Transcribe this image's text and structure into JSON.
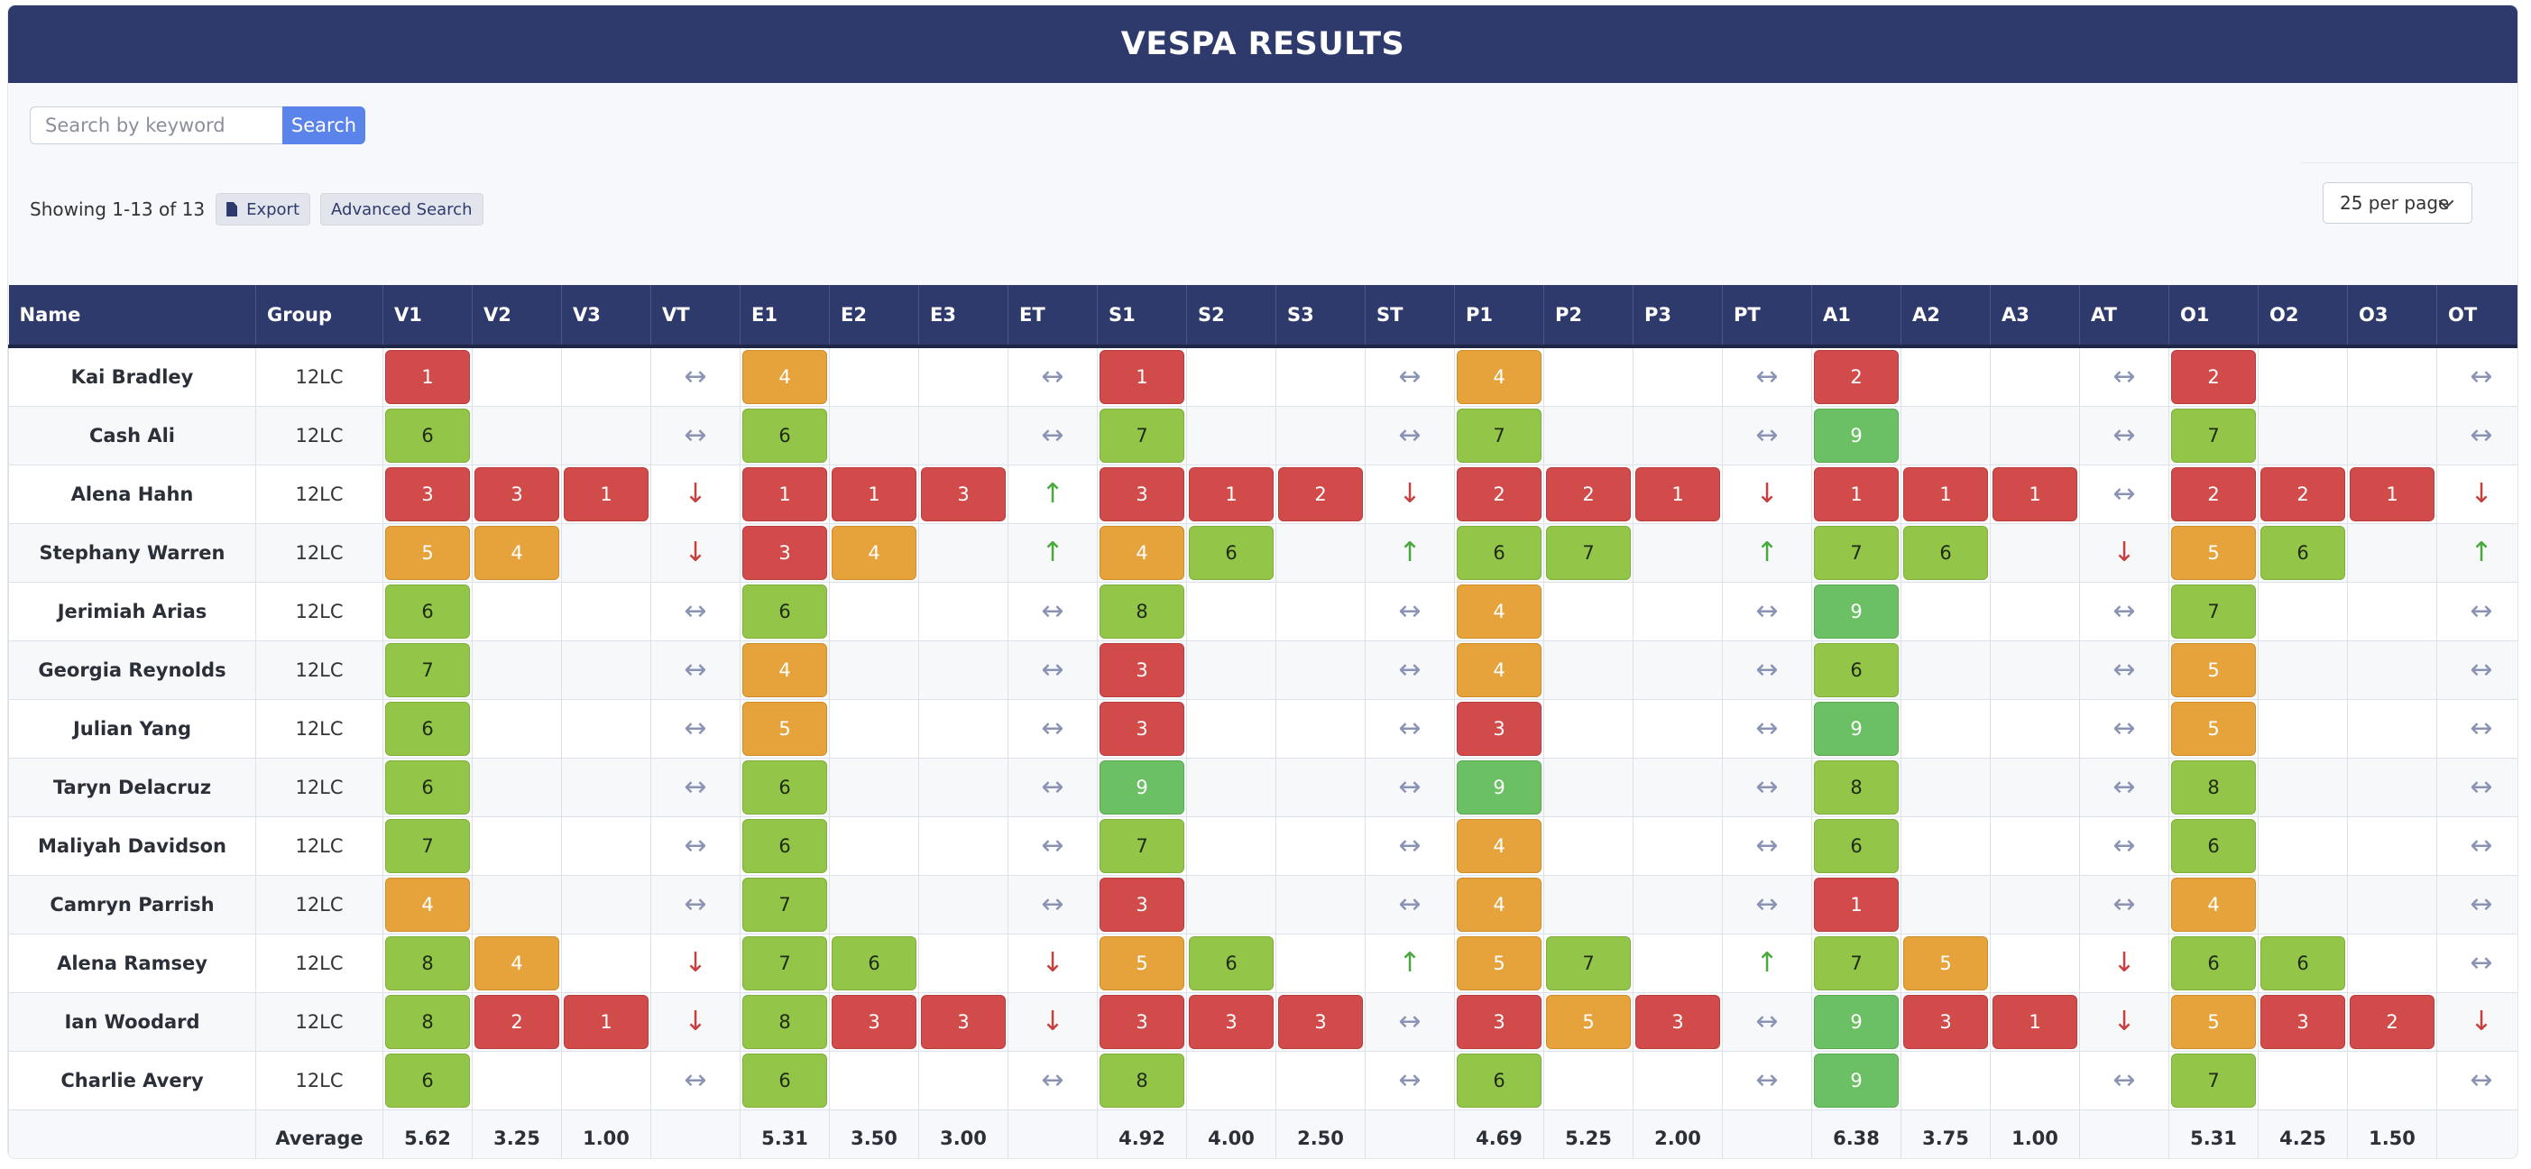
{
  "title": "VESPA RESULTS",
  "search": {
    "placeholder": "Search by keyword",
    "button": "Search"
  },
  "info": {
    "showing": "Showing 1-13 of 13",
    "export": "Export",
    "advanced": "Advanced Search"
  },
  "per_page": "25 per page",
  "colors": {
    "header": "#2e3a6c",
    "red": "#d24b4b",
    "orange": "#e6a33c",
    "lime": "#92c548",
    "green": "#6cc064"
  },
  "table": {
    "headers": [
      "Name",
      "Group",
      "V1",
      "V2",
      "V3",
      "VT",
      "E1",
      "E2",
      "E3",
      "ET",
      "S1",
      "S2",
      "S3",
      "ST",
      "P1",
      "P2",
      "P3",
      "PT",
      "A1",
      "A2",
      "A3",
      "AT",
      "O1",
      "O2",
      "O3",
      "OT"
    ],
    "rows": [
      {
        "name": "Kai Bradley",
        "group": "12LC",
        "cells": [
          [
            1
          ],
          "flat",
          [
            4
          ],
          "flat",
          [
            1
          ],
          "flat",
          [
            4
          ],
          "flat",
          [
            2
          ],
          "flat",
          [
            2
          ],
          "flat"
        ]
      },
      {
        "name": "Cash Ali",
        "group": "12LC",
        "cells": [
          [
            6
          ],
          "flat",
          [
            6
          ],
          "flat",
          [
            7
          ],
          "flat",
          [
            7
          ],
          "flat",
          [
            9
          ],
          "flat",
          [
            7
          ],
          "flat"
        ]
      },
      {
        "name": "Alena Hahn",
        "group": "12LC",
        "cells": [
          [
            3,
            3,
            1
          ],
          "down",
          [
            1,
            1,
            3
          ],
          "up",
          [
            3,
            1,
            2
          ],
          "down",
          [
            2,
            2,
            1
          ],
          "down",
          [
            1,
            1,
            1
          ],
          "flat",
          [
            2,
            2,
            1
          ],
          "down"
        ]
      },
      {
        "name": "Stephany Warren",
        "group": "12LC",
        "cells": [
          [
            5,
            4
          ],
          "down",
          [
            3,
            4
          ],
          "up",
          [
            4,
            6
          ],
          "up",
          [
            6,
            7
          ],
          "up",
          [
            7,
            6
          ],
          "down",
          [
            5,
            6
          ],
          "up"
        ]
      },
      {
        "name": "Jerimiah Arias",
        "group": "12LC",
        "cells": [
          [
            6
          ],
          "flat",
          [
            6
          ],
          "flat",
          [
            8
          ],
          "flat",
          [
            4
          ],
          "flat",
          [
            9
          ],
          "flat",
          [
            7
          ],
          "flat"
        ]
      },
      {
        "name": "Georgia Reynolds",
        "group": "12LC",
        "cells": [
          [
            7
          ],
          "flat",
          [
            4
          ],
          "flat",
          [
            3
          ],
          "flat",
          [
            4
          ],
          "flat",
          [
            6
          ],
          "flat",
          [
            5
          ],
          "flat"
        ]
      },
      {
        "name": "Julian Yang",
        "group": "12LC",
        "cells": [
          [
            6
          ],
          "flat",
          [
            5
          ],
          "flat",
          [
            3
          ],
          "flat",
          [
            3
          ],
          "flat",
          [
            9
          ],
          "flat",
          [
            5
          ],
          "flat"
        ]
      },
      {
        "name": "Taryn Delacruz",
        "group": "12LC",
        "cells": [
          [
            6
          ],
          "flat",
          [
            6
          ],
          "flat",
          [
            9
          ],
          "flat",
          [
            9
          ],
          "flat",
          [
            8
          ],
          "flat",
          [
            8
          ],
          "flat"
        ]
      },
      {
        "name": "Maliyah Davidson",
        "group": "12LC",
        "cells": [
          [
            7
          ],
          "flat",
          [
            6
          ],
          "flat",
          [
            7
          ],
          "flat",
          [
            4
          ],
          "flat",
          [
            6
          ],
          "flat",
          [
            6
          ],
          "flat"
        ]
      },
      {
        "name": "Camryn Parrish",
        "group": "12LC",
        "cells": [
          [
            4
          ],
          "flat",
          [
            7
          ],
          "flat",
          [
            3
          ],
          "flat",
          [
            4
          ],
          "flat",
          [
            1
          ],
          "flat",
          [
            4
          ],
          "flat"
        ]
      },
      {
        "name": "Alena Ramsey",
        "group": "12LC",
        "cells": [
          [
            8,
            4
          ],
          "down",
          [
            7,
            6
          ],
          "down",
          [
            5,
            6
          ],
          "up",
          [
            5,
            7
          ],
          "up",
          [
            7,
            5
          ],
          "down",
          [
            6,
            6
          ],
          "flat"
        ]
      },
      {
        "name": "Ian Woodard",
        "group": "12LC",
        "cells": [
          [
            8,
            2,
            1
          ],
          "down",
          [
            8,
            3,
            3
          ],
          "down",
          [
            3,
            3,
            3
          ],
          "flat",
          [
            3,
            5,
            3
          ],
          "flat",
          [
            9,
            3,
            1
          ],
          "down",
          [
            5,
            3,
            2
          ],
          "down"
        ]
      },
      {
        "name": "Charlie Avery",
        "group": "12LC",
        "cells": [
          [
            6
          ],
          "flat",
          [
            6
          ],
          "flat",
          [
            8
          ],
          "flat",
          [
            6
          ],
          "flat",
          [
            9
          ],
          "flat",
          [
            7
          ],
          "flat"
        ]
      }
    ],
    "average_label": "Average",
    "averages": [
      [
        "5.62",
        "3.25",
        "1.00"
      ],
      [
        "5.31",
        "3.50",
        "3.00"
      ],
      [
        "4.92",
        "4.00",
        "2.50"
      ],
      [
        "4.69",
        "5.25",
        "2.00"
      ],
      [
        "6.38",
        "3.75",
        "1.00"
      ],
      [
        "5.31",
        "4.25",
        "1.50"
      ]
    ]
  }
}
